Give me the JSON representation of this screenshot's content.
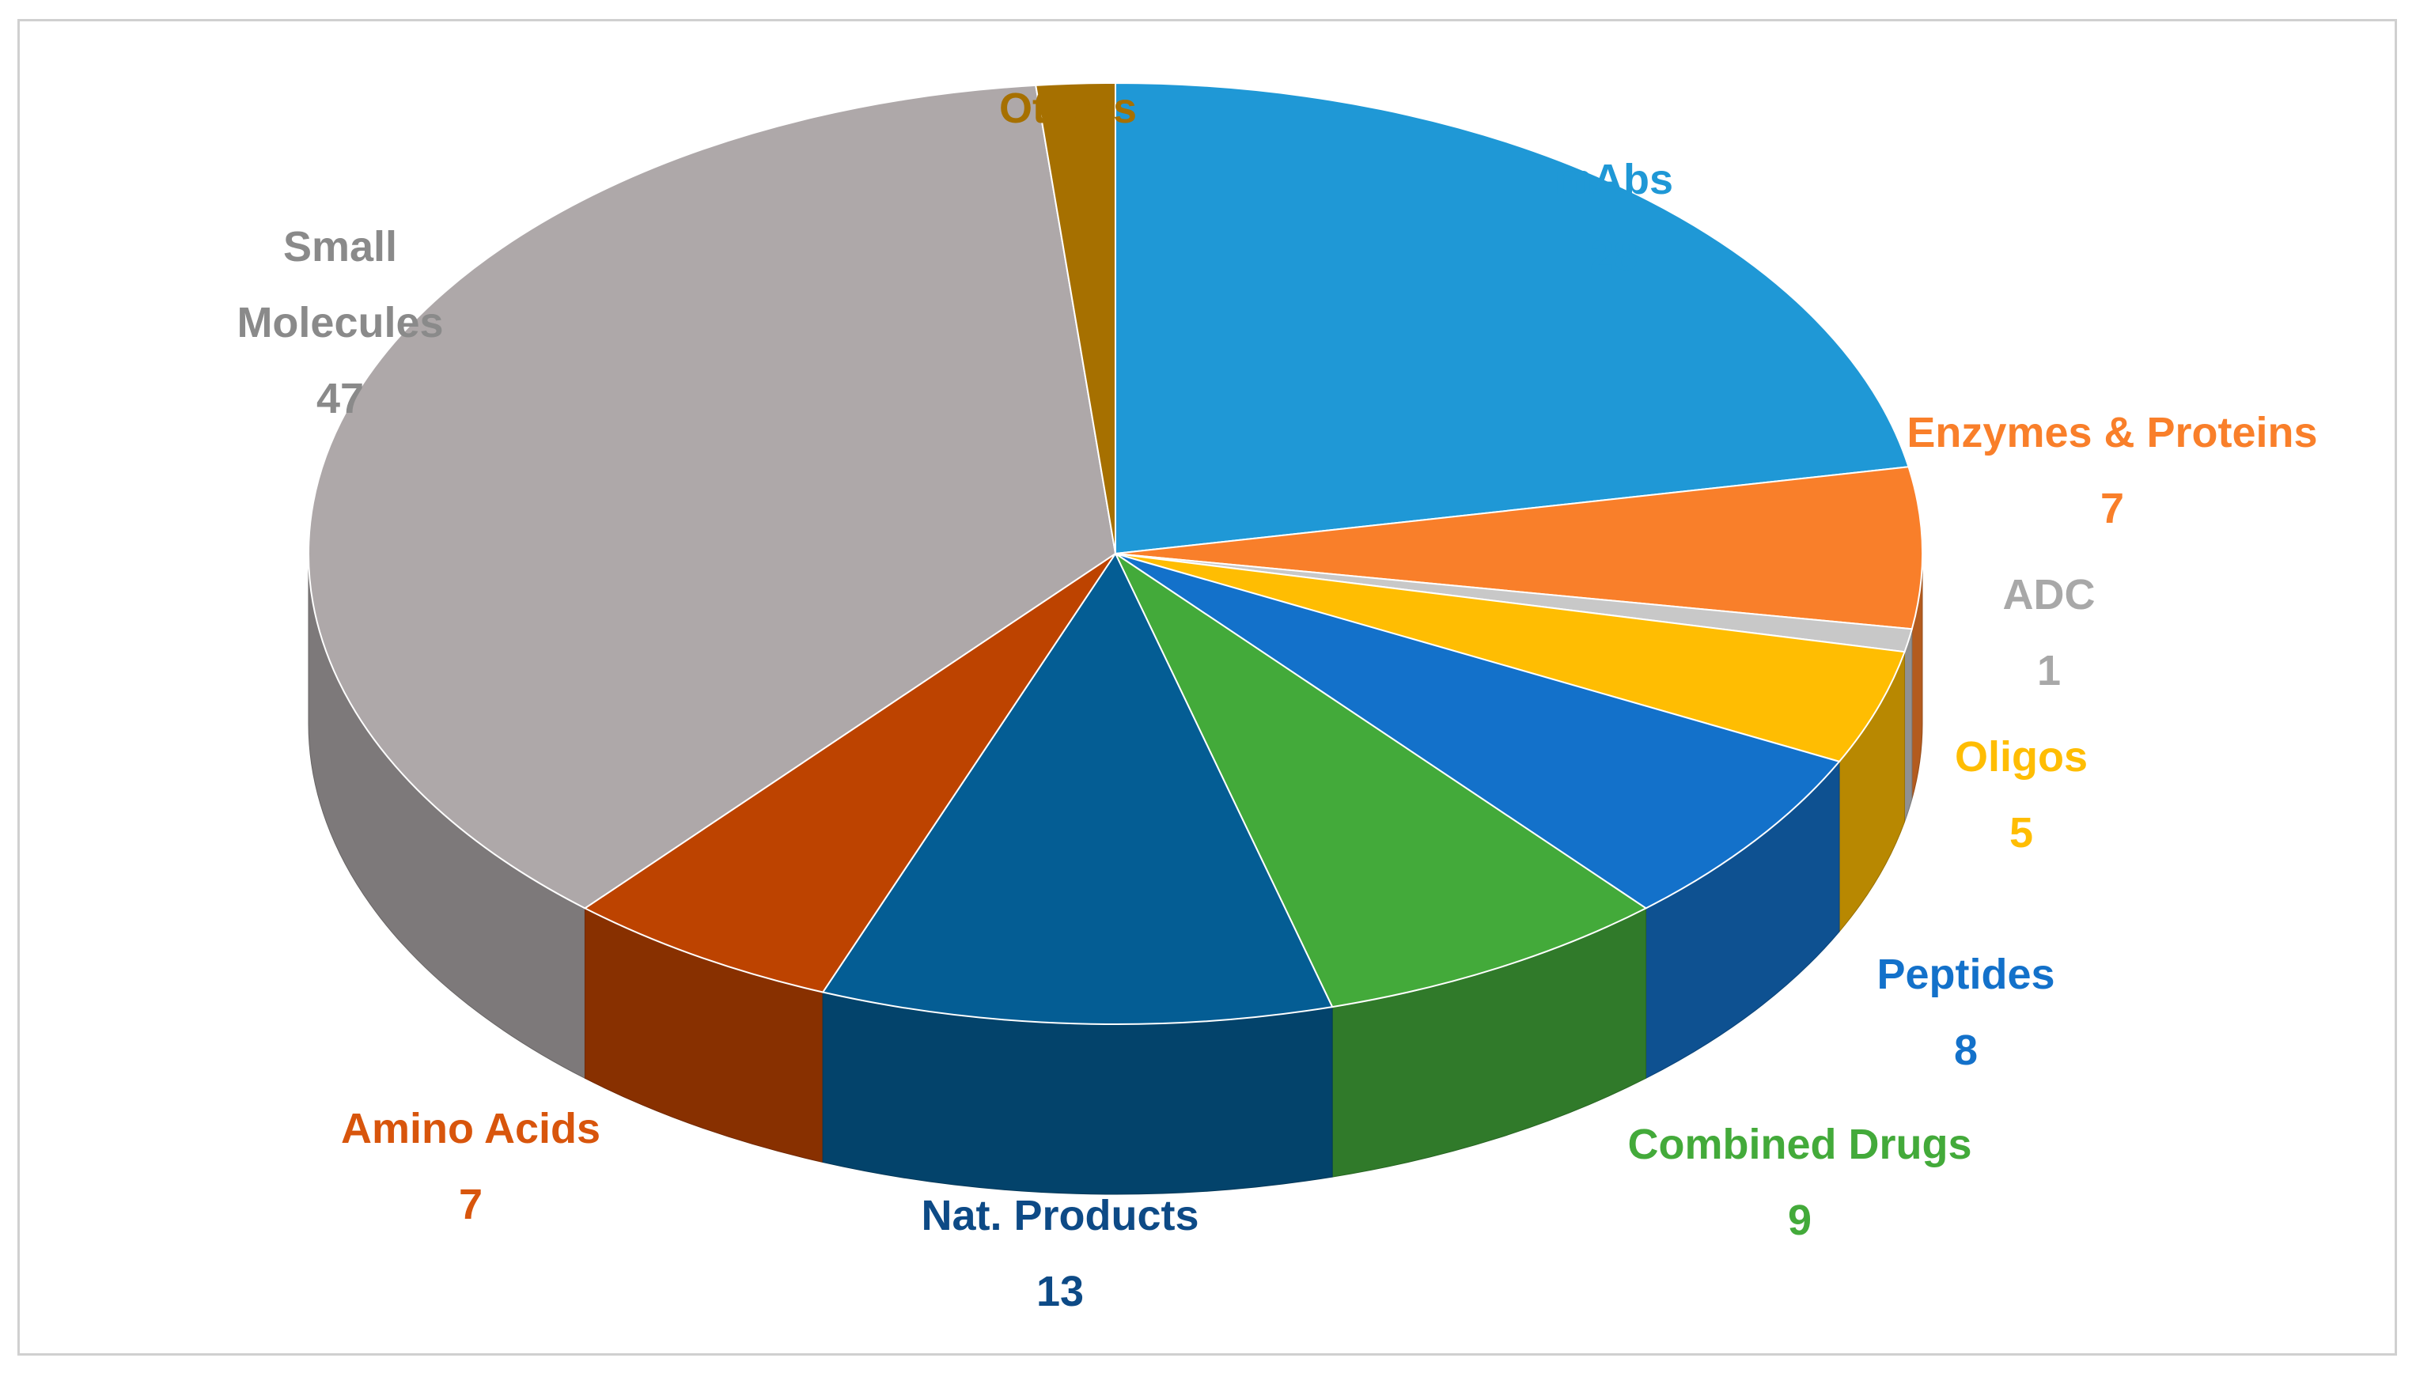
{
  "chart_data": {
    "type": "pie",
    "title": "",
    "legend": "none",
    "slices": [
      {
        "label_lines": [
          "mAbs"
        ],
        "value": 28,
        "color": "#1f98d6",
        "label_color": "#1f98d6"
      },
      {
        "label_lines": [
          "Enzymes & Proteins"
        ],
        "value": 7,
        "color": "#f97f2a",
        "label_color": "#f97f2a"
      },
      {
        "label_lines": [
          "ADC"
        ],
        "value": 1,
        "color": "#c8c8c8",
        "label_color": "#a8a8a8"
      },
      {
        "label_lines": [
          "Oligos"
        ],
        "value": 5,
        "color": "#ffbd02",
        "label_color": "#ffbd02"
      },
      {
        "label_lines": [
          "Peptides"
        ],
        "value": 8,
        "color": "#1371ca",
        "label_color": "#1371ca"
      },
      {
        "label_lines": [
          "Combined Drugs"
        ],
        "value": 9,
        "color": "#43aa3a",
        "label_color": "#43aa3a"
      },
      {
        "label_lines": [
          "Nat. Products"
        ],
        "value": 13,
        "color": "#045d94",
        "label_color": "#0d4a86"
      },
      {
        "label_lines": [
          "Amino Acids"
        ],
        "value": 7,
        "color": "#bd4300",
        "label_color": "#d8550c"
      },
      {
        "label_lines": [
          "Small",
          "Molecules"
        ],
        "value": 47,
        "color": "#aea8a9",
        "label_color": "#8a8a8a"
      },
      {
        "label_lines": [
          "Others"
        ],
        "value": 2,
        "color": "#a67000",
        "label_color": "#a67000"
      }
    ]
  }
}
